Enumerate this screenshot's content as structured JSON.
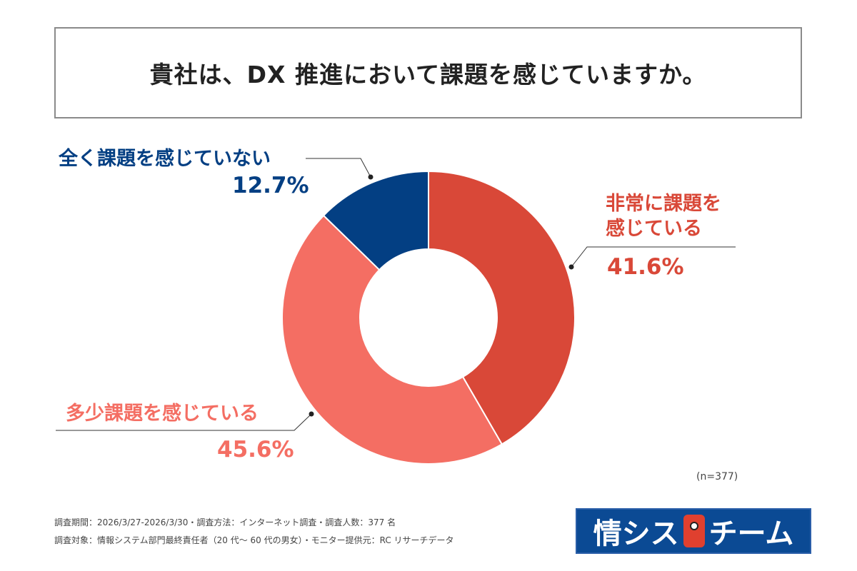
{
  "title": "貴社は、DX 推進において課題を感じていますか。",
  "chart_data": {
    "type": "pie",
    "donut": true,
    "categories": [
      "非常に課題を感じている",
      "多少課題を感じている",
      "全く課題を感じていない"
    ],
    "values": [
      41.6,
      45.6,
      12.7
    ],
    "value_labels": [
      "41.6%",
      "45.6%",
      "12.7%"
    ],
    "colors": [
      "#D94838",
      "#F46E63",
      "#033F83"
    ],
    "start": "12 o'clock, clockwise",
    "sample_size": "(n=377)"
  },
  "labels": {
    "very_line1": "非常に課題を",
    "very_line2": "感じている",
    "some": "多少課題を感じている",
    "none": "全く課題を感じていない"
  },
  "footer": {
    "line1": "調査期間：2026/3/27-2026/3/30・調査方法：インターネット調査・調査人数：377 名",
    "line2": "調査対象：情報システム部門最終責任者（20 代～ 60 代の男女）・モニター提供元：RC リサーチデータ"
  },
  "logo": {
    "left": "情シス",
    "right": "チーム"
  }
}
